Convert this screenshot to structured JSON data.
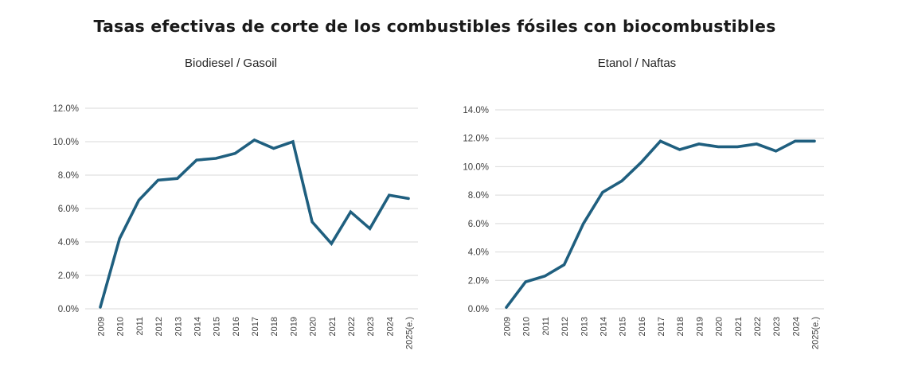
{
  "page_title": "Tasas efectivas de corte de los combustibles fósiles con biocombustibles",
  "chart_data": [
    {
      "type": "line",
      "title": "Biodiesel / Gasoil",
      "x_labels": [
        "2009",
        "2010",
        "2011",
        "2012",
        "2013",
        "2014",
        "2015",
        "2016",
        "2017",
        "2018",
        "2019",
        "2020",
        "2021",
        "2022",
        "2023",
        "2024",
        "2025(e.)"
      ],
      "series": [
        {
          "name": "Biodiesel / Gasoil",
          "values": [
            0.1,
            4.2,
            6.5,
            7.7,
            7.8,
            8.9,
            9.0,
            9.3,
            10.1,
            9.6,
            10.0,
            5.2,
            3.9,
            5.8,
            4.8,
            6.8,
            6.6
          ]
        }
      ],
      "value_unit": "percent",
      "ylim": [
        0,
        12
      ],
      "ytick_step": 2,
      "ytick_labels": [
        "0.0%",
        "2.0%",
        "4.0%",
        "6.0%",
        "8.0%",
        "10.0%",
        "12.0%"
      ],
      "grid": true,
      "legend": "none",
      "line_color": "#1f5f7f",
      "grid_color": "#d9d9d9",
      "axis_text_color": "#3f3f3f"
    },
    {
      "type": "line",
      "title": "Etanol / Naftas",
      "x_labels": [
        "2009",
        "2010",
        "2011",
        "2012",
        "2013",
        "2014",
        "2015",
        "2016",
        "2017",
        "2018",
        "2019",
        "2020",
        "2021",
        "2022",
        "2023",
        "2024",
        "2025(e.)"
      ],
      "series": [
        {
          "name": "Etanol / Naftas",
          "values": [
            0.1,
            1.9,
            2.3,
            3.1,
            6.0,
            8.2,
            9.0,
            10.3,
            11.8,
            11.2,
            11.6,
            11.4,
            11.4,
            11.6,
            11.1,
            11.8,
            11.8
          ]
        }
      ],
      "value_unit": "percent",
      "ylim": [
        0,
        14
      ],
      "ytick_step": 2,
      "ytick_labels": [
        "0.0%",
        "2.0%",
        "4.0%",
        "6.0%",
        "8.0%",
        "10.0%",
        "12.0%",
        "14.0%"
      ],
      "grid": true,
      "legend": "none",
      "line_color": "#1f5f7f",
      "grid_color": "#d9d9d9",
      "axis_text_color": "#3f3f3f"
    }
  ]
}
